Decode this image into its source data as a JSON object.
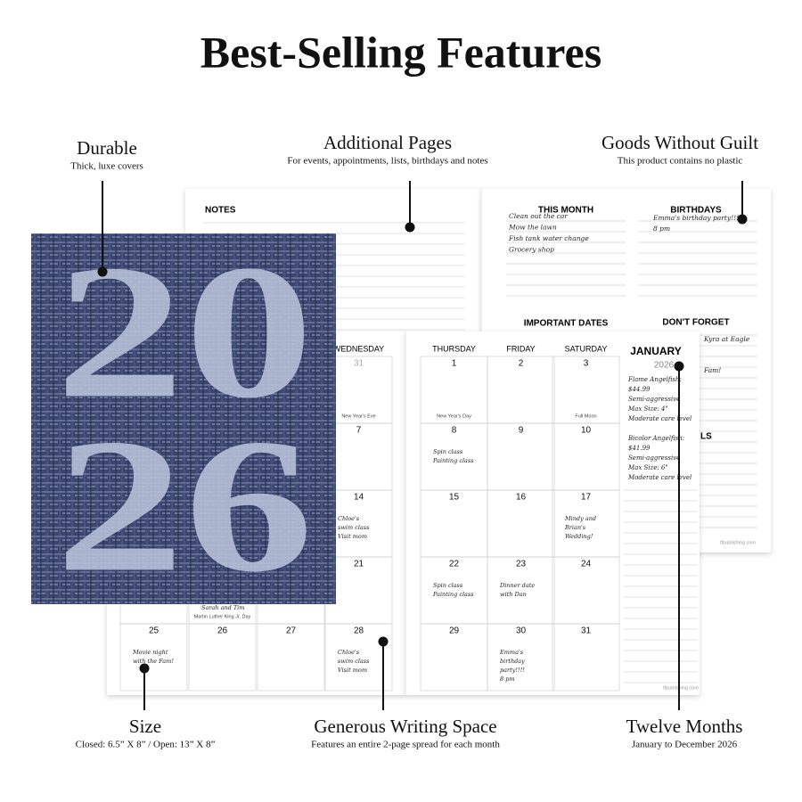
{
  "header": {
    "title": "Best-Selling Features"
  },
  "callouts": [
    {
      "title": "Durable",
      "subtitle": "Thick, luxe covers"
    },
    {
      "title": "Additional Pages",
      "subtitle": "For events, appointments, lists, birthdays and notes"
    },
    {
      "title": "Goods Without Guilt",
      "subtitle": "This product contains no plastic"
    },
    {
      "title": "Size",
      "subtitle": "Closed: 6.5” X 8” / Open: 13” X 8”"
    },
    {
      "title": "Generous Writing Space",
      "subtitle": "Features an entire 2-page spread for each month"
    },
    {
      "title": "Twelve Months",
      "subtitle": "January to December 2026"
    }
  ],
  "back_spread": {
    "notes": "NOTES",
    "this_month": {
      "heading": "THIS MONTH",
      "items": [
        "Clean out the car",
        "Mow the lawn",
        "Fish tank water change",
        "Grocery shop"
      ]
    },
    "birthdays": {
      "heading": "BIRTHDAYS",
      "items": [
        "Emma's birthday party!!!!",
        "8 pm"
      ]
    },
    "important_dates": "IMPORTANT DATES",
    "dont_forget": {
      "heading": "DON'T FORGET",
      "items": [
        "Kyra at Eagle",
        "Fam!"
      ]
    },
    "goals_fragment": "LS"
  },
  "footer": "tfpublishing.com",
  "cover": {
    "lines": [
      "20",
      "26"
    ]
  },
  "calendar": {
    "weekdays": [
      null,
      null,
      null,
      "WEDNESDAY",
      "THURSDAY",
      "FRIDAY",
      "SATURDAY"
    ],
    "month": "JANUARY",
    "year": "2026",
    "weeks": [
      [
        null,
        null,
        null,
        {
          "day": 31,
          "event": "New Year's Eve"
        },
        {
          "day": 1,
          "event": "New Year's Day"
        },
        {
          "day": 2
        },
        {
          "day": 3,
          "event": "Full Moon"
        }
      ],
      [
        null,
        null,
        null,
        {
          "day": 7
        },
        {
          "day": 8,
          "lines": [
            "Spin class",
            "Painting class"
          ]
        },
        {
          "day": 9
        },
        {
          "day": 10
        }
      ],
      [
        null,
        null,
        null,
        {
          "day": 14,
          "lines": [
            "Chloe's",
            "swim class",
            "Visit mom"
          ]
        },
        {
          "day": 15
        },
        {
          "day": 16
        },
        {
          "day": 17,
          "lines": [
            "Mindy and",
            "Brian's",
            "Wedding!"
          ]
        }
      ],
      [
        null,
        {
          "lines": [
            "Sarah and Tim"
          ],
          "event": "Martin Luther King Jr. Day"
        },
        null,
        {
          "day": 21
        },
        {
          "day": 22,
          "lines": [
            "Spin class",
            "Painting class"
          ]
        },
        {
          "day": 23,
          "lines": [
            "Dinner date",
            "with Dan"
          ]
        },
        {
          "day": 24
        }
      ],
      [
        {
          "day": 25,
          "lines": [
            "Movie night",
            "with the Fam!"
          ]
        },
        {
          "day": 26
        },
        {
          "day": 27
        },
        {
          "day": 28,
          "lines": [
            "Chloe's",
            "swim class",
            "Visit mom"
          ]
        },
        {
          "day": 29
        },
        {
          "day": 30,
          "lines": [
            "Emma's",
            "birthday",
            "party!!!!",
            "8 pm"
          ]
        },
        {
          "day": 31
        }
      ]
    ],
    "notes": [
      [
        "Flame Angelfish:",
        "$44.99",
        "Semi-aggressive",
        "Max Size: 4\"",
        "Moderate care level"
      ],
      [
        "Bicolor Angelfish:",
        "$41.99",
        "Semi-aggressive",
        "Max Size: 6\"",
        "Moderate care level"
      ]
    ]
  }
}
